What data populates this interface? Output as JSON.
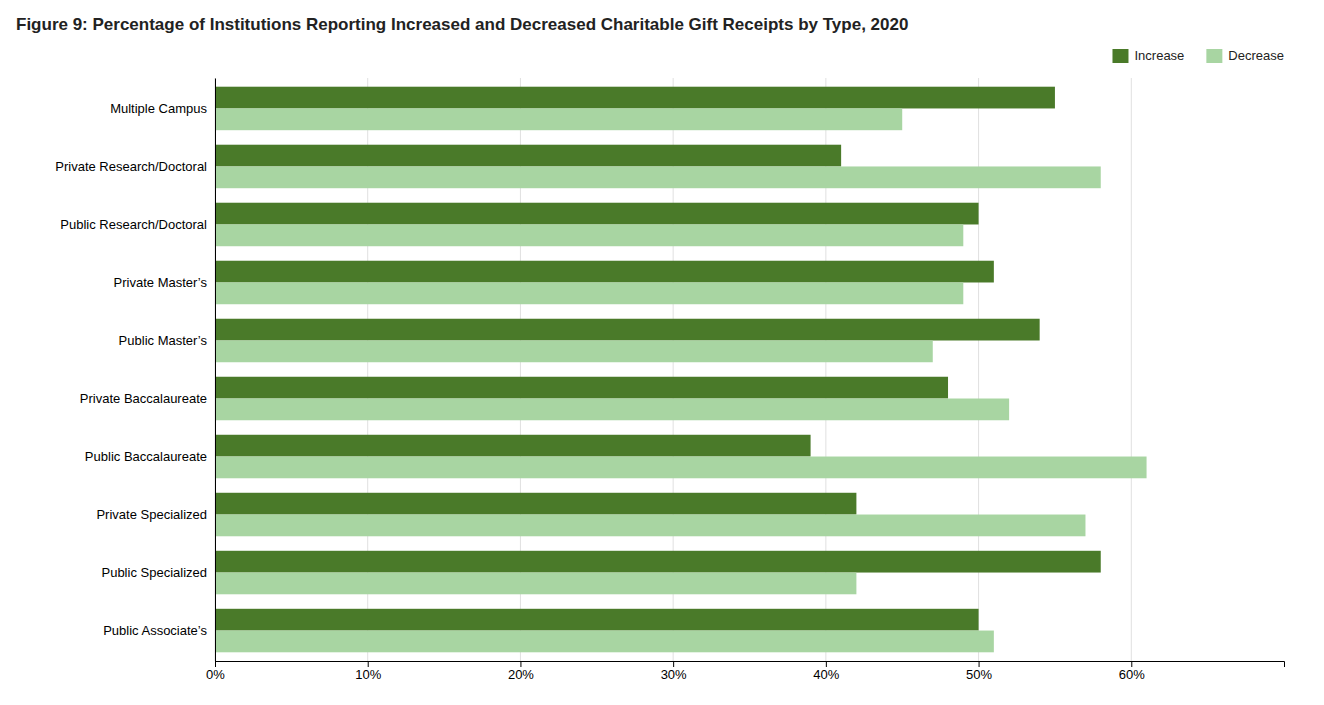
{
  "chart_data": {
    "type": "bar",
    "orientation": "horizontal",
    "title": "Figure 9: Percentage of Institutions Reporting Increased and Decreased Charitable Gift Receipts by Type, 2020",
    "categories": [
      "Multiple Campus",
      "Private Research/Doctoral",
      "Public Research/Doctoral",
      "Private Master’s",
      "Public Master’s",
      "Private Baccalaureate",
      "Public Baccalaureate",
      "Private Specialized",
      "Public Specialized",
      "Public Associate’s"
    ],
    "series": [
      {
        "name": "Increase",
        "color": "#4a7a29",
        "values": [
          55,
          41,
          50,
          51,
          54,
          48,
          39,
          42,
          58,
          50
        ]
      },
      {
        "name": "Decrease",
        "color": "#a8d5a2",
        "values": [
          45,
          58,
          49,
          49,
          47,
          52,
          61,
          57,
          42,
          51
        ]
      }
    ],
    "xlim": [
      0,
      70
    ],
    "xticks": [
      {
        "value": 0,
        "label": "0%"
      },
      {
        "value": 10,
        "label": "10%"
      },
      {
        "value": 20,
        "label": "20%"
      },
      {
        "value": 30,
        "label": "30%"
      },
      {
        "value": 40,
        "label": "40%"
      },
      {
        "value": 50,
        "label": "50%"
      },
      {
        "value": 60,
        "label": "60%"
      }
    ],
    "grid": true,
    "legend": "upper right"
  }
}
